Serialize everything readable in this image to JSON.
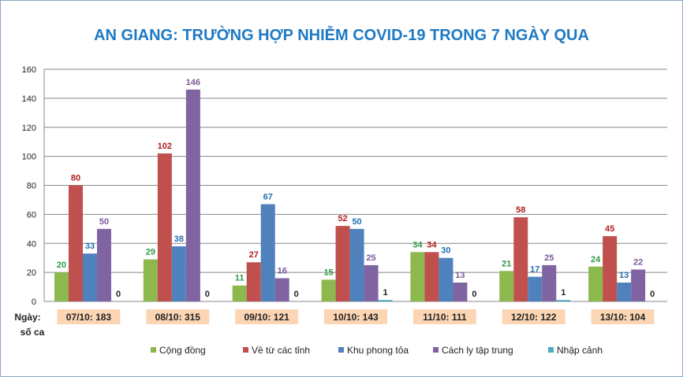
{
  "chart_data": {
    "type": "bar",
    "title": "AN GIANG: TRƯỜNG HỢP NHIỄM COVID-19 TRONG 7 NGÀY QUA",
    "x_axis_caption_line1": "Ngày:",
    "x_axis_caption_line2": "số ca",
    "categories": [
      "07/10: 183",
      "08/10: 315",
      "09/10: 121",
      "10/10: 143",
      "11/10: 111",
      "12/10: 122",
      "13/10: 104"
    ],
    "ylim": [
      0,
      160
    ],
    "y_ticks": [
      0,
      20,
      40,
      60,
      80,
      100,
      120,
      140,
      160
    ],
    "grid": true,
    "legend_position": "bottom",
    "series": [
      {
        "name": "Cộng đồng",
        "color": "#8cb84e",
        "label_color": "#2e9a45",
        "values": [
          20,
          29,
          11,
          15,
          34,
          21,
          24
        ]
      },
      {
        "name": "Về từ các tỉnh",
        "color": "#c0504d",
        "label_color": "#b01e1e",
        "values": [
          80,
          102,
          27,
          52,
          34,
          58,
          45
        ]
      },
      {
        "name": "Khu phong tỏa",
        "color": "#4f81bd",
        "label_color": "#1f6fb0",
        "values": [
          33,
          38,
          67,
          50,
          30,
          17,
          13
        ]
      },
      {
        "name": "Cách ly tập trung",
        "color": "#8064a2",
        "label_color": "#7a5a9a",
        "values": [
          50,
          146,
          16,
          25,
          13,
          25,
          22
        ]
      },
      {
        "name": "Nhập cảnh",
        "color": "#4bacc6",
        "label_color": "#222222",
        "values": [
          0,
          0,
          0,
          1,
          0,
          1,
          0
        ]
      }
    ],
    "category_label_bg": "#fcd5b4"
  }
}
